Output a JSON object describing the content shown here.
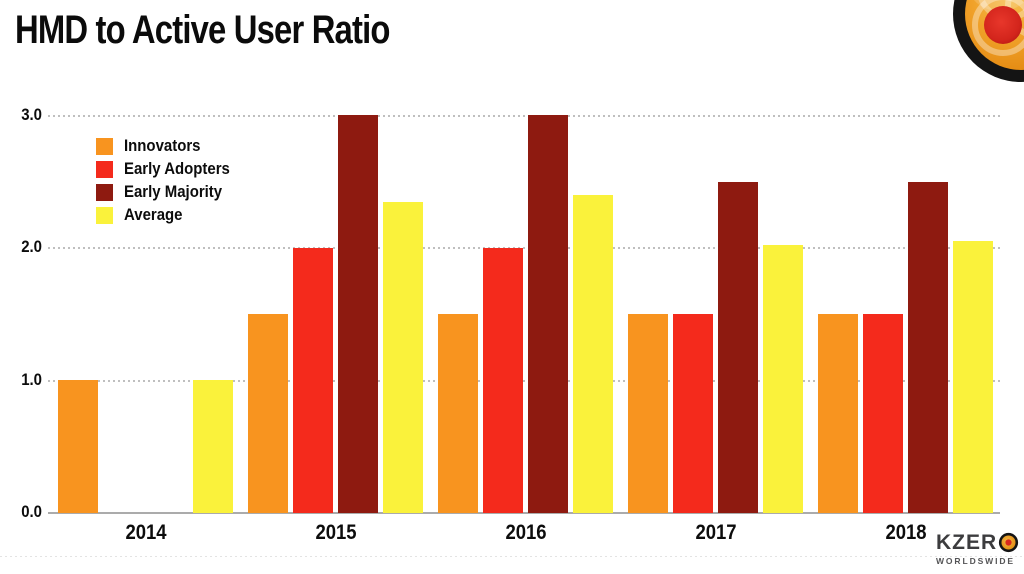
{
  "header": {
    "title": "HMD to Active User Ratio"
  },
  "branding": {
    "corner_logo_icon": "kzero-rings-logo",
    "brand_text": "KZERO",
    "brand_sub": "WORLDSWIDE"
  },
  "chart_data": {
    "type": "bar",
    "title": "HMD to Active User Ratio",
    "categories": [
      "2014",
      "2015",
      "2016",
      "2017",
      "2018"
    ],
    "series": [
      {
        "name": "Innovators",
        "color": "#F8941F",
        "values": [
          1.0,
          1.5,
          1.5,
          1.5,
          1.5
        ]
      },
      {
        "name": "Early Adopters",
        "color": "#F42A1C",
        "values": [
          null,
          2.0,
          2.0,
          1.5,
          1.5
        ]
      },
      {
        "name": "Early Majority",
        "color": "#8E1A10",
        "values": [
          null,
          3.0,
          3.0,
          2.5,
          2.5
        ]
      },
      {
        "name": "Average",
        "color": "#FAF23B",
        "values": [
          1.0,
          2.35,
          2.4,
          2.02,
          2.05
        ]
      }
    ],
    "ylim": [
      0,
      3
    ],
    "yticks": [
      0,
      1,
      2,
      3
    ],
    "ytick_labels": [
      "0.0",
      "1.0",
      "2.0",
      "3.0"
    ],
    "grid": "horizontal-dotted",
    "gridline_color": "#BFBFBF",
    "baseline_color": "#ABABAB",
    "legend_position": "top-left"
  }
}
